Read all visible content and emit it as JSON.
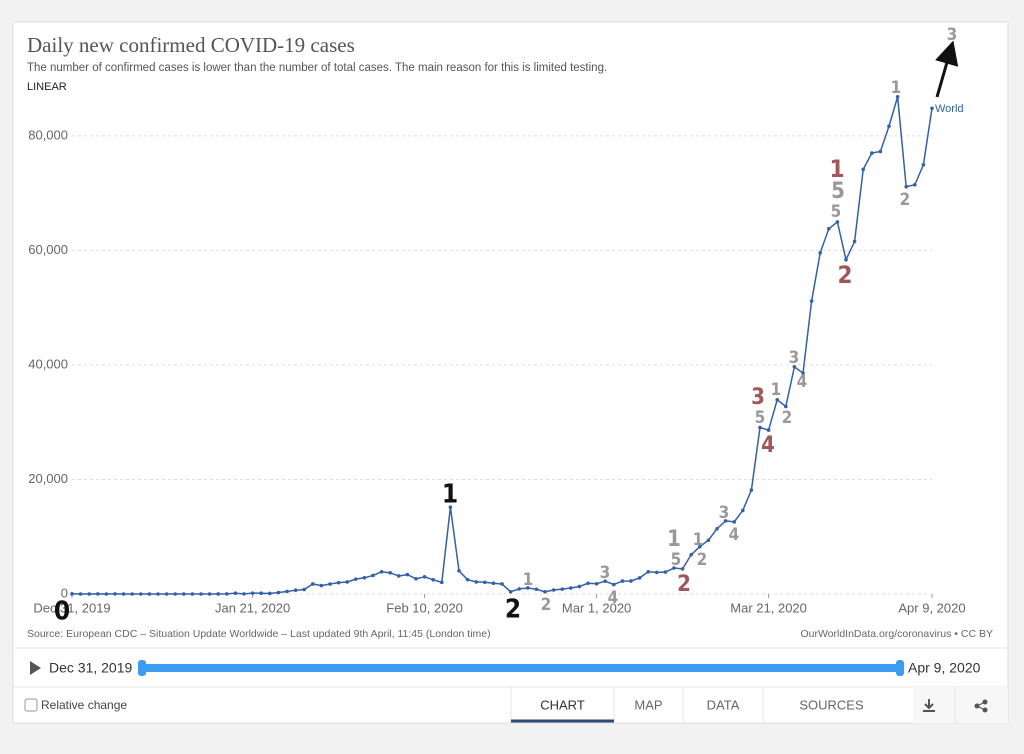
{
  "chart_data": {
    "type": "line",
    "title": "Daily new confirmed COVID-19 cases",
    "subtitle": "The number of confirmed cases is lower than the number of total cases. The main reason for this is limited testing.",
    "scale_label": "LINEAR",
    "source": "Source: European CDC – Situation Update Worldwide – Last updated 9th April, 11:45 (London time)",
    "credit": "OurWorldInData.org/coronavirus • CC BY",
    "x": [
      "2019-12-31",
      "2020-01-01",
      "2020-01-02",
      "2020-01-03",
      "2020-01-04",
      "2020-01-05",
      "2020-01-06",
      "2020-01-07",
      "2020-01-08",
      "2020-01-09",
      "2020-01-10",
      "2020-01-11",
      "2020-01-12",
      "2020-01-13",
      "2020-01-14",
      "2020-01-15",
      "2020-01-16",
      "2020-01-17",
      "2020-01-18",
      "2020-01-19",
      "2020-01-20",
      "2020-01-21",
      "2020-01-22",
      "2020-01-23",
      "2020-01-24",
      "2020-01-25",
      "2020-01-26",
      "2020-01-27",
      "2020-01-28",
      "2020-01-29",
      "2020-01-30",
      "2020-01-31",
      "2020-02-01",
      "2020-02-02",
      "2020-02-03",
      "2020-02-04",
      "2020-02-05",
      "2020-02-06",
      "2020-02-07",
      "2020-02-08",
      "2020-02-09",
      "2020-02-10",
      "2020-02-11",
      "2020-02-12",
      "2020-02-13",
      "2020-02-14",
      "2020-02-15",
      "2020-02-16",
      "2020-02-17",
      "2020-02-18",
      "2020-02-19",
      "2020-02-20",
      "2020-02-21",
      "2020-02-22",
      "2020-02-23",
      "2020-02-24",
      "2020-02-25",
      "2020-02-26",
      "2020-02-27",
      "2020-02-28",
      "2020-02-29",
      "2020-03-01",
      "2020-03-02",
      "2020-03-03",
      "2020-03-04",
      "2020-03-05",
      "2020-03-06",
      "2020-03-07",
      "2020-03-08",
      "2020-03-09",
      "2020-03-10",
      "2020-03-11",
      "2020-03-12",
      "2020-03-13",
      "2020-03-14",
      "2020-03-15",
      "2020-03-16",
      "2020-03-17",
      "2020-03-18",
      "2020-03-19",
      "2020-03-20",
      "2020-03-21",
      "2020-03-22",
      "2020-03-23",
      "2020-03-24",
      "2020-03-25",
      "2020-03-26",
      "2020-03-27",
      "2020-03-28",
      "2020-03-29",
      "2020-03-30",
      "2020-03-31",
      "2020-04-01",
      "2020-04-02",
      "2020-04-03",
      "2020-04-04",
      "2020-04-05",
      "2020-04-06",
      "2020-04-07",
      "2020-04-08",
      "2020-04-09"
    ],
    "series": [
      {
        "name": "World",
        "color": "#3360a9",
        "values": [
          27,
          0,
          0,
          17,
          0,
          15,
          0,
          0,
          0,
          0,
          0,
          0,
          0,
          0,
          0,
          0,
          0,
          4,
          17,
          136,
          20,
          151,
          140,
          97,
          259,
          441,
          665,
          787,
          1753,
          1466,
          1740,
          1980,
          2102,
          2590,
          2829,
          3235,
          3884,
          3697,
          3151,
          3387,
          2653,
          3008,
          2478,
          2030,
          15153,
          4050,
          2502,
          2114,
          2048,
          1886,
          1749,
          391,
          894,
          1052,
          829,
          375,
          697,
          848,
          1046,
          1313,
          1867,
          1788,
          2241,
          1645,
          2254,
          2274,
          2812,
          3874,
          3771,
          3837,
          4529,
          4385,
          6868,
          8265,
          9384,
          11394,
          12769,
          12592,
          14599,
          18155,
          29071,
          28619,
          33909,
          32741,
          39654,
          38577,
          51141,
          59576,
          63768,
          64957,
          58366,
          61566,
          74135,
          76987,
          77259,
          81675,
          86822,
          71114,
          71454,
          74935,
          84812
        ]
      }
    ],
    "xlim": [
      "2019-12-31",
      "2020-04-09"
    ],
    "xticks": [
      {
        "value": "2019-12-31",
        "label": "Dec 31, 2019"
      },
      {
        "value": "2020-01-21",
        "label": "Jan 21, 2020"
      },
      {
        "value": "2020-02-10",
        "label": "Feb 10, 2020"
      },
      {
        "value": "2020-03-01",
        "label": "Mar 1, 2020"
      },
      {
        "value": "2020-03-21",
        "label": "Mar 21, 2020"
      },
      {
        "value": "2020-04-09",
        "label": "Apr 9, 2020"
      }
    ],
    "ylim": [
      0,
      88000
    ],
    "yticks": [
      0,
      {
        "value": 20000,
        "label": "20,000"
      },
      {
        "value": 40000,
        "label": "40,000"
      },
      {
        "value": 60000,
        "label": "60,000"
      },
      {
        "value": 80000,
        "label": "80,000"
      }
    ],
    "grid": true,
    "annotations": [
      "0",
      "1",
      "2",
      "1",
      "2",
      "3",
      "4",
      "1",
      "5",
      "2",
      "1",
      "2",
      "3",
      "4",
      "3",
      "5",
      "4",
      "1",
      "2",
      "3",
      "4",
      "1",
      "5",
      "5",
      "2",
      "1",
      "2",
      "3"
    ]
  },
  "timeline": {
    "start": "Dec 31, 2019",
    "end": "Apr 9, 2020"
  },
  "controls": {
    "relative_change": "Relative change",
    "tabs": [
      "CHART",
      "MAP",
      "DATA",
      "SOURCES"
    ]
  }
}
